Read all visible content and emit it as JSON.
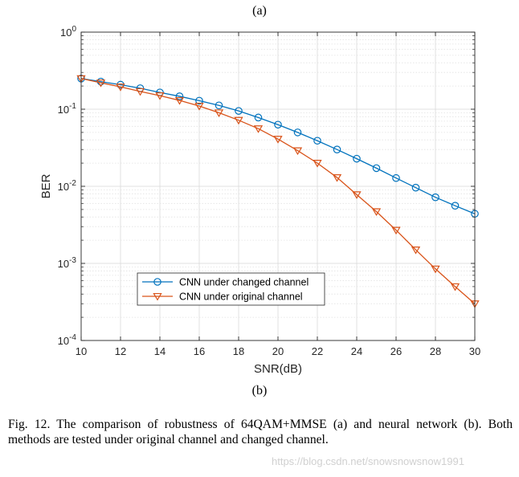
{
  "top_label": "(a)",
  "bottom_label": "(b)",
  "caption": "Fig. 12.   The comparison of robustness of 64QAM+MMSE (a) and neural network (b). Both methods are tested under original channel and changed channel.",
  "watermark": "https://blog.csdn.net/snowsnowsnow1991",
  "colors": {
    "series1": "#0072BD",
    "series2": "#D95319",
    "axis": "#262626"
  },
  "chart_data": {
    "type": "line",
    "title": "",
    "xlabel": "SNR(dB)",
    "ylabel": "BER",
    "xlim": [
      10,
      30
    ],
    "ylim": [
      0.0001,
      1
    ],
    "yscale": "log",
    "grid": true,
    "legend_position": "lower-left",
    "xticks": [
      10,
      12,
      14,
      16,
      18,
      20,
      22,
      24,
      26,
      28,
      30
    ],
    "yticks": [
      {
        "value": 1,
        "base": "10",
        "exp": "0"
      },
      {
        "value": 0.1,
        "base": "10",
        "exp": "-1"
      },
      {
        "value": 0.01,
        "base": "10",
        "exp": "-2"
      },
      {
        "value": 0.001,
        "base": "10",
        "exp": "-3"
      },
      {
        "value": 0.0001,
        "base": "10",
        "exp": "-4"
      }
    ],
    "x": [
      10,
      11,
      12,
      13,
      14,
      15,
      16,
      17,
      18,
      19,
      20,
      21,
      22,
      23,
      24,
      25,
      26,
      27,
      28,
      29,
      30
    ],
    "series": [
      {
        "name": "CNN under changed channel",
        "marker": "circle",
        "color": "#0072BD",
        "values": [
          0.25,
          0.228,
          0.208,
          0.187,
          0.165,
          0.147,
          0.129,
          0.112,
          0.095,
          0.078,
          0.063,
          0.05,
          0.039,
          0.03,
          0.0228,
          0.0172,
          0.0128,
          0.0096,
          0.0072,
          0.0056,
          0.0044
        ]
      },
      {
        "name": "CNN under original channel",
        "marker": "triangle-down",
        "color": "#D95319",
        "values": [
          0.25,
          0.22,
          0.195,
          0.17,
          0.15,
          0.13,
          0.11,
          0.09,
          0.072,
          0.056,
          0.041,
          0.029,
          0.02,
          0.013,
          0.0078,
          0.0047,
          0.0027,
          0.0015,
          0.00085,
          0.0005,
          0.0003
        ]
      }
    ]
  }
}
